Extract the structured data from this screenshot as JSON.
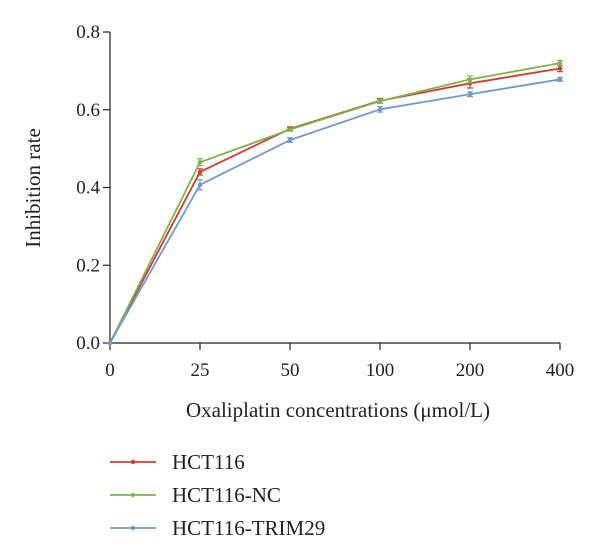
{
  "chart_data": {
    "type": "line",
    "xlabel": "Oxaliplatin concentrations (μmol/L)",
    "ylabel": "Inhibition rate",
    "categories": [
      "0",
      "25",
      "50",
      "100",
      "200",
      "400"
    ],
    "yticks": [
      "0.0",
      "0.2",
      "0.4",
      "0.6",
      "0.8"
    ],
    "ylim": [
      0,
      0.8
    ],
    "grid": false,
    "legend_position": "bottom",
    "series": [
      {
        "name": "HCT116",
        "color": "#d7382e",
        "values": [
          0,
          0.44,
          0.551,
          0.623,
          0.668,
          0.706
        ],
        "errors": [
          0,
          0.008,
          0.005,
          0.006,
          0.012,
          0.008
        ]
      },
      {
        "name": "HCT116-NC",
        "color": "#7ab648",
        "values": [
          0,
          0.465,
          0.549,
          0.622,
          0.678,
          0.72
        ],
        "errors": [
          0,
          0.009,
          0.004,
          0.005,
          0.009,
          0.007
        ]
      },
      {
        "name": "HCT116-TRIM29",
        "color": "#6f98d3",
        "values": [
          0,
          0.407,
          0.522,
          0.601,
          0.64,
          0.678
        ],
        "errors": [
          0,
          0.013,
          0.006,
          0.007,
          0.006,
          0.005
        ]
      }
    ]
  }
}
